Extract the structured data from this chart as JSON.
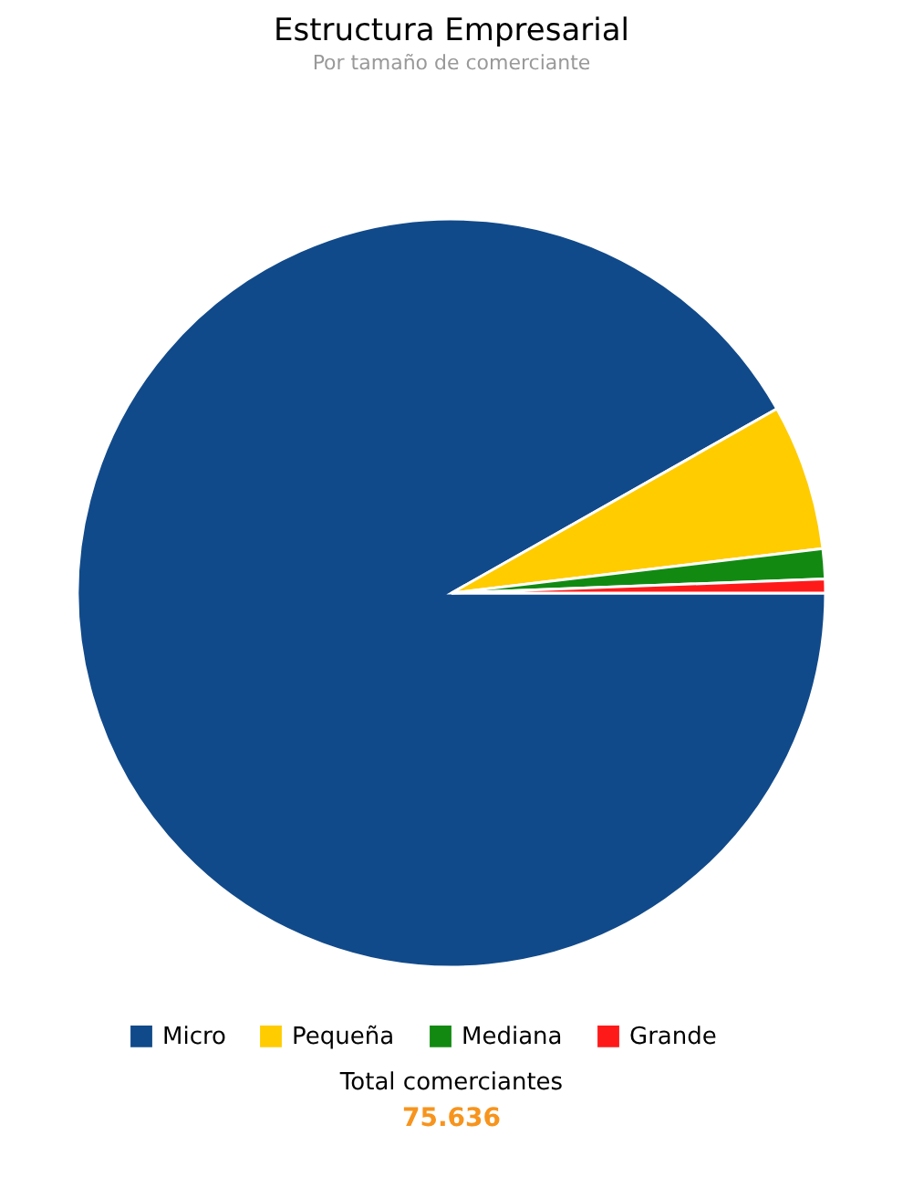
{
  "chart_data": {
    "type": "pie",
    "title": "Estructura Empresarial",
    "subtitle": "Por tamaño de comerciante",
    "categories": [
      "Micro",
      "Pequeña",
      "Mediana",
      "Grande"
    ],
    "values": [
      91.8,
      6.3,
      1.3,
      0.6
    ],
    "colors": [
      "#114a8a",
      "#ffcc00",
      "#128a12",
      "#ff1a1a"
    ],
    "legend": "bottom",
    "annotations": [
      "Total comerciantes",
      "75.636"
    ]
  }
}
